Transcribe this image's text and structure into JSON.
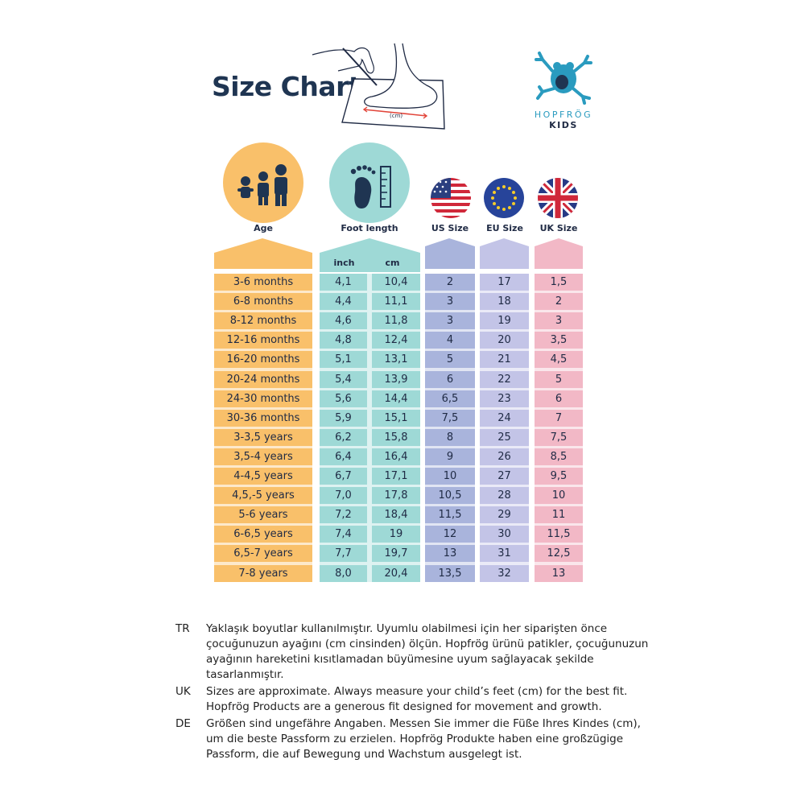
{
  "title": "Size Chart",
  "illustration": {
    "measure_label": "(cm)"
  },
  "logo": {
    "name": "HOPFRÖG",
    "sub": "KIDS"
  },
  "headers": {
    "age": "Age",
    "foot_length": "Foot length",
    "us": "US Size",
    "eu": "EU Size",
    "uk": "UK Size",
    "inch": "inch",
    "cm": "cm"
  },
  "rows": [
    {
      "age": "3-6 months",
      "inch": "4,1",
      "cm": "10,4",
      "us": "2",
      "eu": "17",
      "uk": "1,5"
    },
    {
      "age": "6-8 months",
      "inch": "4,4",
      "cm": "11,1",
      "us": "3",
      "eu": "18",
      "uk": "2"
    },
    {
      "age": "8-12 months",
      "inch": "4,6",
      "cm": "11,8",
      "us": "3",
      "eu": "19",
      "uk": "3"
    },
    {
      "age": "12-16 months",
      "inch": "4,8",
      "cm": "12,4",
      "us": "4",
      "eu": "20",
      "uk": "3,5"
    },
    {
      "age": "16-20 months",
      "inch": "5,1",
      "cm": "13,1",
      "us": "5",
      "eu": "21",
      "uk": "4,5"
    },
    {
      "age": "20-24 months",
      "inch": "5,4",
      "cm": "13,9",
      "us": "6",
      "eu": "22",
      "uk": "5"
    },
    {
      "age": "24-30 months",
      "inch": "5,6",
      "cm": "14,4",
      "us": "6,5",
      "eu": "23",
      "uk": "6"
    },
    {
      "age": "30-36 months",
      "inch": "5,9",
      "cm": "15,1",
      "us": "7,5",
      "eu": "24",
      "uk": "7"
    },
    {
      "age": "3-3,5 years",
      "inch": "6,2",
      "cm": "15,8",
      "us": "8",
      "eu": "25",
      "uk": "7,5"
    },
    {
      "age": "3,5-4 years",
      "inch": "6,4",
      "cm": "16,4",
      "us": "9",
      "eu": "26",
      "uk": "8,5"
    },
    {
      "age": "4-4,5 years",
      "inch": "6,7",
      "cm": "17,1",
      "us": "10",
      "eu": "27",
      "uk": "9,5"
    },
    {
      "age": "4,5,-5 years",
      "inch": "7,0",
      "cm": "17,8",
      "us": "10,5",
      "eu": "28",
      "uk": "10"
    },
    {
      "age": "5-6 years",
      "inch": "7,2",
      "cm": "18,4",
      "us": "11,5",
      "eu": "29",
      "uk": "11"
    },
    {
      "age": "6-6,5 years",
      "inch": "7,4",
      "cm": "19",
      "us": "12",
      "eu": "30",
      "uk": "11,5"
    },
    {
      "age": "6,5-7 years",
      "inch": "7,7",
      "cm": "19,7",
      "us": "13",
      "eu": "31",
      "uk": "12,5"
    },
    {
      "age": "7-8 years",
      "inch": "8,0",
      "cm": "20,4",
      "us": "13,5",
      "eu": "32",
      "uk": "13"
    }
  ],
  "notes": [
    {
      "code": "TR",
      "text": "Yaklaşık boyutlar kullanılmıştır. Uyumlu olabilmesi için her siparişten önce çocuğunuzun ayağını (cm cinsinden) ölçün. Hopfrög ürünü patikler, çocuğunuzun ayağının hareketini kısıtlamadan büyümesine uyum sağlayacak şekilde tasarlanmıştır."
    },
    {
      "code": "UK",
      "text": "Sizes are approximate. Always measure your child’s feet (cm) for the best fit. Hopfrög Products are a generous fit designed for movement and growth."
    },
    {
      "code": "DE",
      "text": "Größen sind ungefähre Angaben. Messen Sie immer die Füße Ihres Kindes (cm), um die beste Passform zu erzielen. Hopfrög Produkte haben eine großzügige Passform, die auf Bewegung und Wachstum ausgelegt ist."
    }
  ],
  "colors": {
    "age": "#f9c06a",
    "foot": "#9ed9d6",
    "us": "#a9b4dc",
    "eu": "#c3c4e7",
    "uk": "#f2b8c6",
    "title": "#1f3552",
    "brand": "#2a9bbf"
  },
  "icons": [
    "family-icon",
    "footprint-ruler-icon",
    "us-flag-icon",
    "eu-flag-icon",
    "uk-flag-icon",
    "frog-logo-icon",
    "measuring-foot-illustration"
  ]
}
